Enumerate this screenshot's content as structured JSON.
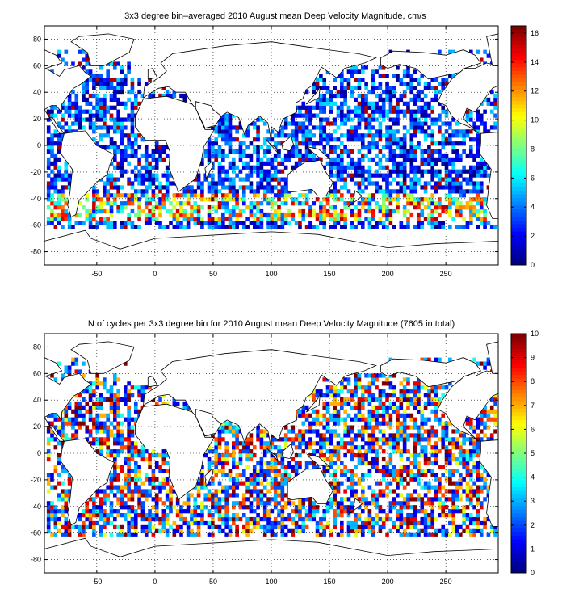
{
  "chart_data": [
    {
      "type": "heatmap",
      "title": "3x3 degree bin–averaged 2010 August mean Deep Velocity Magnitude, cm/s",
      "xlim": [
        -95,
        295
      ],
      "ylim": [
        -90,
        90
      ],
      "x_ticks": [
        -50,
        0,
        50,
        100,
        150,
        200,
        250
      ],
      "y_ticks": [
        -80,
        -60,
        -40,
        -20,
        0,
        20,
        40,
        60,
        80
      ],
      "x_tick_labels": [
        "-50",
        "0",
        "50",
        "100",
        "150",
        "200",
        "250"
      ],
      "y_tick_labels": [
        "-80",
        "-60",
        "-40",
        "-20",
        "0",
        "20",
        "40",
        "60",
        "80"
      ],
      "grid": "dotted",
      "bin_size_deg": 3,
      "colorbar": {
        "min": 0,
        "max": 16.5,
        "ticks": [
          0,
          2,
          4,
          6,
          8,
          10,
          12,
          14,
          16
        ],
        "tick_labels": [
          "0",
          "2",
          "4",
          "6",
          "8",
          "10",
          "12",
          "14",
          "16"
        ]
      },
      "colormap": "jet",
      "field": "velocity"
    },
    {
      "type": "heatmap",
      "title": "N of cycles per 3x3 degree bin for 2010 August mean Deep Velocity Magnitude (7605 in total)",
      "total_cycles": 7605,
      "xlim": [
        -95,
        295
      ],
      "ylim": [
        -90,
        90
      ],
      "x_ticks": [
        -50,
        0,
        50,
        100,
        150,
        200,
        250
      ],
      "y_ticks": [
        -80,
        -60,
        -40,
        -20,
        0,
        20,
        40,
        60,
        80
      ],
      "x_tick_labels": [
        "-50",
        "0",
        "50",
        "100",
        "150",
        "200",
        "250"
      ],
      "y_tick_labels": [
        "-80",
        "-60",
        "-40",
        "-20",
        "0",
        "20",
        "40",
        "60",
        "80"
      ],
      "grid": "dotted",
      "bin_size_deg": 3,
      "colorbar": {
        "min": 0,
        "max": 10,
        "ticks": [
          0,
          1,
          2,
          3,
          4,
          5,
          6,
          7,
          8,
          9,
          10
        ],
        "tick_labels": [
          "0",
          "1",
          "2",
          "3",
          "4",
          "5",
          "6",
          "7",
          "8",
          "9",
          "10"
        ]
      },
      "colormap": "jet",
      "field": "count"
    }
  ]
}
